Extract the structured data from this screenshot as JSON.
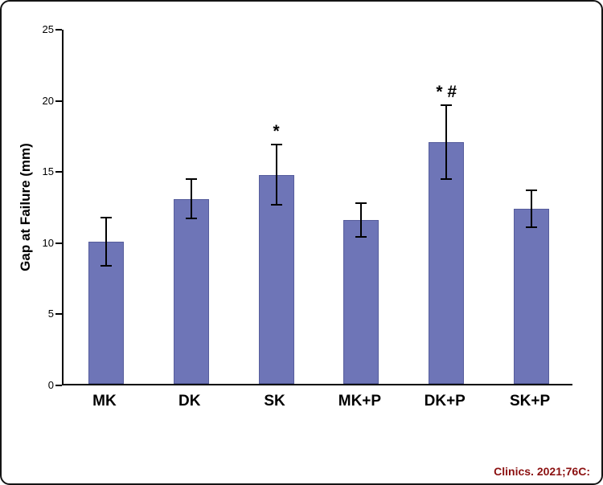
{
  "chart_data": {
    "type": "bar",
    "categories": [
      "MK",
      "DK",
      "SK",
      "MK+P",
      "DK+P",
      "SK+P"
    ],
    "values": [
      10.0,
      13.0,
      14.7,
      11.5,
      17.0,
      12.3
    ],
    "errors": [
      1.7,
      1.4,
      2.1,
      1.2,
      2.6,
      1.3
    ],
    "annotations": [
      "",
      "",
      "*",
      "",
      "* #",
      ""
    ],
    "title": "",
    "xlabel": "",
    "ylabel": "Gap at Failure (mm)",
    "ylim": [
      0,
      25
    ],
    "yticks": [
      0,
      5,
      10,
      15,
      20,
      25
    ],
    "bar_color": "#6e75b7",
    "grid": false,
    "legend": false
  },
  "footer": {
    "citation": "Clinics. 2021;76C:",
    "citation_color": "#8b1010"
  }
}
